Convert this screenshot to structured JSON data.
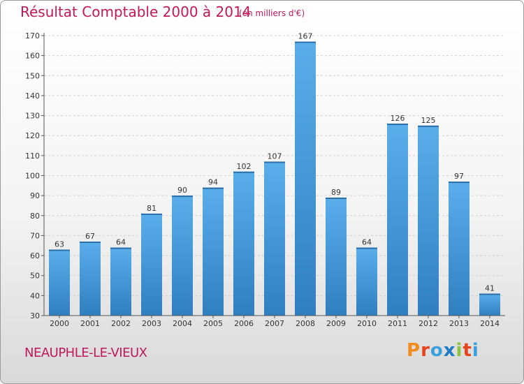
{
  "header": {
    "title": "Résultat Comptable 2000 à 2014",
    "subtitle": "(en milliers d'€)"
  },
  "footer": {
    "commune": "NEAUPHLE-LE-VIEUX",
    "logo": "Proxiti",
    "logo_colors": [
      "#f28c1c",
      "#e8421b",
      "#3aa0dc",
      "#1d7cc4",
      "#8bc43f",
      "#e8421b",
      "#3aa0dc"
    ]
  },
  "colors": {
    "bar_top": "#5aaeea",
    "bar_bottom": "#2f7fc1",
    "accent": "#c0185a"
  },
  "chart_data": {
    "type": "bar",
    "categories": [
      "2000",
      "2001",
      "2002",
      "2003",
      "2004",
      "2005",
      "2006",
      "2007",
      "2008",
      "2009",
      "2010",
      "2011",
      "2012",
      "2013",
      "2014"
    ],
    "values": [
      63,
      67,
      64,
      81,
      90,
      94,
      102,
      107,
      167,
      89,
      64,
      126,
      125,
      97,
      41
    ],
    "ylim": [
      30,
      170
    ],
    "yticks": [
      30,
      40,
      50,
      60,
      70,
      80,
      90,
      100,
      110,
      120,
      130,
      140,
      150,
      160,
      170
    ],
    "grid": true,
    "title": "Résultat Comptable 2000 à 2014",
    "ylabel": "",
    "xlabel": ""
  }
}
